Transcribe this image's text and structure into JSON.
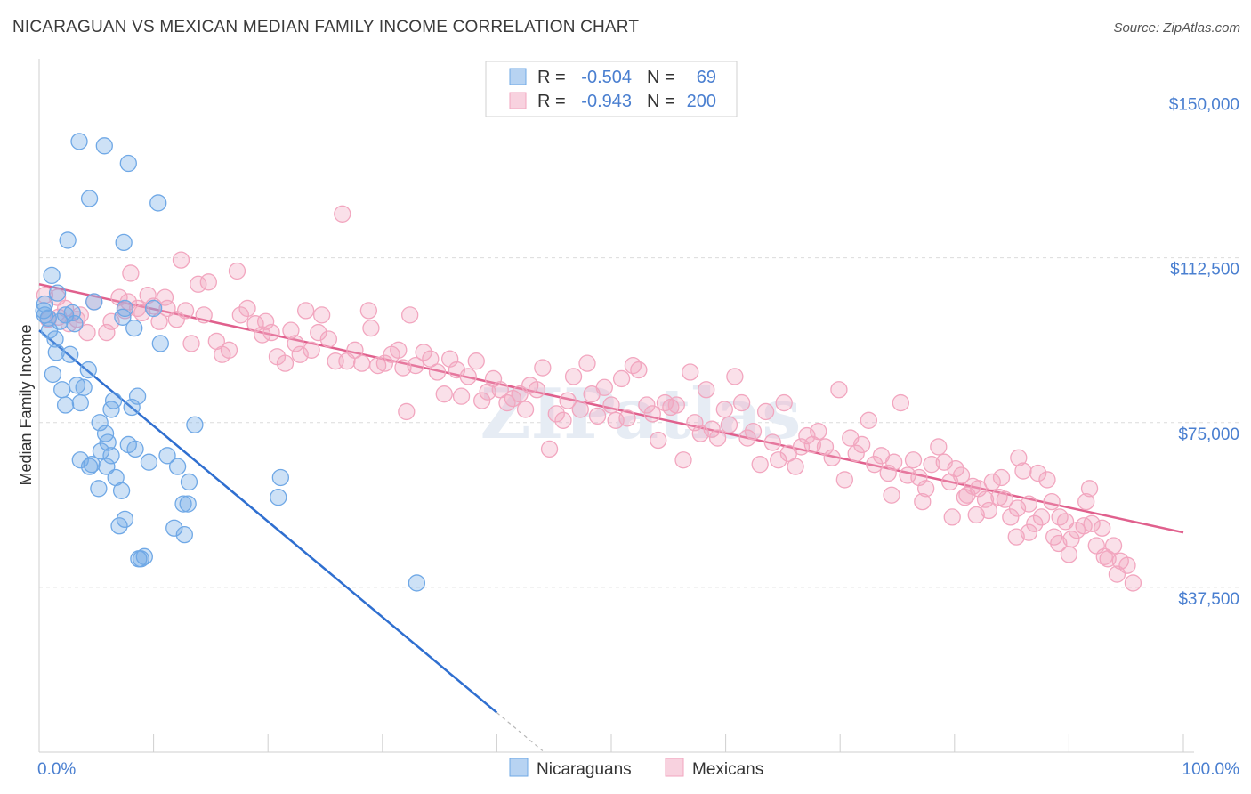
{
  "title": "NICARAGUAN VS MEXICAN MEDIAN FAMILY INCOME CORRELATION CHART",
  "source": "Source: ZipAtlas.com",
  "watermark": "ZIPatlas",
  "colors": {
    "blue": "#6fa8e6",
    "blue_line": "#2f6fd0",
    "pink": "#f2a6bf",
    "pink_line": "#e0608d",
    "tick_label": "#4a7fd0",
    "grid": "#dcdcdc"
  },
  "legend": {
    "rows": [
      {
        "r_label": "R =",
        "r_value": "-0.504",
        "n_label": "N =",
        "n_value": "69"
      },
      {
        "r_label": "R =",
        "r_value": "-0.943",
        "n_label": "N =",
        "n_value": "200"
      }
    ]
  },
  "bottom_legend": [
    "Nicaraguans",
    "Mexicans"
  ],
  "chart_data": {
    "type": "scatter",
    "title": "NICARAGUAN VS MEXICAN MEDIAN FAMILY INCOME CORRELATION CHART",
    "xlabel": "",
    "ylabel": "Median Family Income",
    "xlim": [
      0,
      100
    ],
    "ylim": [
      0,
      157000
    ],
    "x_tick_labels": [
      "0.0%",
      "100.0%"
    ],
    "y_ticks": [
      37500,
      75000,
      112500,
      150000
    ],
    "y_tick_labels": [
      "$37,500",
      "$75,000",
      "$112,500",
      "$150,000"
    ],
    "grid": true,
    "legend_position": "top-center",
    "series": [
      {
        "name": "Nicaraguans",
        "R": -0.504,
        "N": 69,
        "trend": {
          "x": [
            0,
            40
          ],
          "y": [
            96000,
            9000
          ]
        },
        "points": [
          [
            3.5,
            139000
          ],
          [
            5.7,
            138000
          ],
          [
            7.8,
            134000
          ],
          [
            10.4,
            125000
          ],
          [
            4.4,
            126000
          ],
          [
            2.5,
            116500
          ],
          [
            7.4,
            116000
          ],
          [
            1.1,
            108500
          ],
          [
            1.6,
            104500
          ],
          [
            0.5,
            102000
          ],
          [
            0.4,
            100500
          ],
          [
            0.5,
            99500
          ],
          [
            0.8,
            98800
          ],
          [
            2.3,
            99500
          ],
          [
            4.8,
            102500
          ],
          [
            2.9,
            100000
          ],
          [
            7.5,
            101000
          ],
          [
            7.3,
            99000
          ],
          [
            1.8,
            98000
          ],
          [
            0.9,
            96000
          ],
          [
            8.3,
            96500
          ],
          [
            1.4,
            94000
          ],
          [
            10.6,
            93000
          ],
          [
            1.5,
            91000
          ],
          [
            2.7,
            90500
          ],
          [
            1.2,
            86000
          ],
          [
            4.3,
            87000
          ],
          [
            6.5,
            80000
          ],
          [
            6.3,
            78000
          ],
          [
            8.6,
            81000
          ],
          [
            3.3,
            83500
          ],
          [
            2.0,
            82500
          ],
          [
            3.9,
            83000
          ],
          [
            8.1,
            78500
          ],
          [
            2.3,
            79000
          ],
          [
            3.6,
            79500
          ],
          [
            5.3,
            75000
          ],
          [
            5.8,
            72500
          ],
          [
            13.6,
            74500
          ],
          [
            7.8,
            70000
          ],
          [
            8.4,
            69000
          ],
          [
            5.4,
            68500
          ],
          [
            3.6,
            66500
          ],
          [
            4.4,
            65000
          ],
          [
            4.6,
            65500
          ],
          [
            6.3,
            67500
          ],
          [
            9.6,
            66000
          ],
          [
            11.2,
            67500
          ],
          [
            12.1,
            65000
          ],
          [
            5.9,
            65000
          ],
          [
            6.7,
            62500
          ],
          [
            5.2,
            60000
          ],
          [
            7.2,
            59500
          ],
          [
            13.1,
            61500
          ],
          [
            21.1,
            62500
          ],
          [
            20.9,
            58000
          ],
          [
            12.6,
            56500
          ],
          [
            13.0,
            56500
          ],
          [
            7.5,
            53000
          ],
          [
            7.0,
            51500
          ],
          [
            11.8,
            51000
          ],
          [
            12.7,
            49500
          ],
          [
            9.2,
            44500
          ],
          [
            8.7,
            44000
          ],
          [
            8.9,
            44000
          ],
          [
            33.0,
            38500
          ],
          [
            10.0,
            101000
          ],
          [
            3.1,
            97500
          ],
          [
            6.0,
            70500
          ]
        ]
      },
      {
        "name": "Mexicans",
        "R": -0.943,
        "N": 200,
        "trend": {
          "x": [
            0,
            100
          ],
          "y": [
            106500,
            50000
          ]
        },
        "points": [
          [
            0.5,
            104000
          ],
          [
            1.6,
            103500
          ],
          [
            2.3,
            101000
          ],
          [
            0.8,
            98500
          ],
          [
            1.7,
            99000
          ],
          [
            2.6,
            97500
          ],
          [
            3.3,
            98500
          ],
          [
            3.6,
            99500
          ],
          [
            4.2,
            95500
          ],
          [
            4.8,
            102500
          ],
          [
            5.9,
            95500
          ],
          [
            6.3,
            98000
          ],
          [
            7.0,
            103500
          ],
          [
            7.5,
            100500
          ],
          [
            7.8,
            102500
          ],
          [
            8.0,
            109000
          ],
          [
            8.6,
            101000
          ],
          [
            9.0,
            100000
          ],
          [
            9.5,
            104000
          ],
          [
            10.0,
            101500
          ],
          [
            10.5,
            98000
          ],
          [
            11.0,
            103500
          ],
          [
            11.2,
            101000
          ],
          [
            12.0,
            98500
          ],
          [
            12.4,
            112000
          ],
          [
            12.8,
            100500
          ],
          [
            13.3,
            93000
          ],
          [
            13.9,
            106500
          ],
          [
            14.4,
            99500
          ],
          [
            14.8,
            107000
          ],
          [
            15.5,
            93500
          ],
          [
            16.0,
            90500
          ],
          [
            16.6,
            91500
          ],
          [
            17.3,
            109500
          ],
          [
            17.6,
            99500
          ],
          [
            18.2,
            101000
          ],
          [
            18.9,
            97500
          ],
          [
            19.5,
            95000
          ],
          [
            19.8,
            98000
          ],
          [
            20.3,
            95500
          ],
          [
            20.8,
            90000
          ],
          [
            21.5,
            88500
          ],
          [
            22.0,
            96000
          ],
          [
            22.4,
            93000
          ],
          [
            22.8,
            90500
          ],
          [
            23.3,
            100500
          ],
          [
            23.8,
            91500
          ],
          [
            24.4,
            95500
          ],
          [
            24.7,
            99500
          ],
          [
            25.3,
            94000
          ],
          [
            25.9,
            89000
          ],
          [
            26.5,
            122500
          ],
          [
            26.9,
            89000
          ],
          [
            27.6,
            91500
          ],
          [
            28.2,
            88500
          ],
          [
            28.8,
            100500
          ],
          [
            29.0,
            96500
          ],
          [
            29.6,
            88000
          ],
          [
            30.2,
            88500
          ],
          [
            30.8,
            90500
          ],
          [
            31.4,
            91500
          ],
          [
            31.8,
            87500
          ],
          [
            32.1,
            77500
          ],
          [
            32.4,
            99500
          ],
          [
            32.9,
            88000
          ],
          [
            33.6,
            91000
          ],
          [
            34.2,
            89500
          ],
          [
            34.8,
            86500
          ],
          [
            35.4,
            81500
          ],
          [
            35.9,
            89500
          ],
          [
            36.5,
            87000
          ],
          [
            36.9,
            81000
          ],
          [
            37.5,
            85500
          ],
          [
            38.2,
            89000
          ],
          [
            38.7,
            80000
          ],
          [
            39.2,
            82000
          ],
          [
            39.7,
            85000
          ],
          [
            40.3,
            82500
          ],
          [
            40.9,
            79500
          ],
          [
            41.4,
            80500
          ],
          [
            42.0,
            81500
          ],
          [
            42.5,
            78000
          ],
          [
            42.9,
            83500
          ],
          [
            43.5,
            82500
          ],
          [
            44.0,
            87500
          ],
          [
            44.6,
            69000
          ],
          [
            45.2,
            77000
          ],
          [
            45.8,
            75500
          ],
          [
            46.2,
            80000
          ],
          [
            46.7,
            85500
          ],
          [
            47.3,
            78000
          ],
          [
            47.9,
            88500
          ],
          [
            48.3,
            81500
          ],
          [
            48.8,
            76500
          ],
          [
            49.4,
            83000
          ],
          [
            50.0,
            79000
          ],
          [
            50.4,
            75500
          ],
          [
            50.9,
            85000
          ],
          [
            51.4,
            76000
          ],
          [
            51.9,
            88000
          ],
          [
            52.4,
            87000
          ],
          [
            53.1,
            79000
          ],
          [
            53.6,
            77000
          ],
          [
            54.1,
            71000
          ],
          [
            54.7,
            79500
          ],
          [
            55.2,
            78500
          ],
          [
            55.7,
            79000
          ],
          [
            56.3,
            66500
          ],
          [
            56.9,
            86500
          ],
          [
            57.3,
            75000
          ],
          [
            57.8,
            72500
          ],
          [
            58.3,
            82500
          ],
          [
            58.8,
            73500
          ],
          [
            59.3,
            71500
          ],
          [
            59.9,
            78000
          ],
          [
            60.3,
            74500
          ],
          [
            60.8,
            85500
          ],
          [
            61.4,
            79500
          ],
          [
            61.9,
            71500
          ],
          [
            62.4,
            73000
          ],
          [
            63.0,
            65500
          ],
          [
            63.5,
            77500
          ],
          [
            64.1,
            70500
          ],
          [
            64.6,
            66500
          ],
          [
            65.1,
            79500
          ],
          [
            65.5,
            68000
          ],
          [
            66.1,
            65000
          ],
          [
            66.6,
            69500
          ],
          [
            67.1,
            72000
          ],
          [
            67.6,
            70000
          ],
          [
            68.1,
            73000
          ],
          [
            68.7,
            69500
          ],
          [
            69.3,
            67000
          ],
          [
            69.9,
            82500
          ],
          [
            70.4,
            62000
          ],
          [
            70.9,
            71500
          ],
          [
            71.4,
            68000
          ],
          [
            71.9,
            70000
          ],
          [
            72.5,
            75500
          ],
          [
            73.0,
            65500
          ],
          [
            73.6,
            67500
          ],
          [
            74.2,
            63500
          ],
          [
            74.7,
            66000
          ],
          [
            75.3,
            79500
          ],
          [
            75.9,
            63000
          ],
          [
            76.4,
            66500
          ],
          [
            76.9,
            62500
          ],
          [
            77.5,
            60000
          ],
          [
            78.0,
            65500
          ],
          [
            78.6,
            69500
          ],
          [
            79.1,
            66000
          ],
          [
            79.6,
            61500
          ],
          [
            80.1,
            64500
          ],
          [
            80.6,
            63000
          ],
          [
            81.1,
            58500
          ],
          [
            81.6,
            60500
          ],
          [
            82.1,
            60000
          ],
          [
            82.7,
            57500
          ],
          [
            83.3,
            61500
          ],
          [
            83.9,
            58000
          ],
          [
            84.4,
            57500
          ],
          [
            84.9,
            53500
          ],
          [
            85.5,
            55500
          ],
          [
            86.0,
            64000
          ],
          [
            86.5,
            56500
          ],
          [
            87.0,
            52000
          ],
          [
            87.6,
            53500
          ],
          [
            88.1,
            62000
          ],
          [
            88.7,
            49000
          ],
          [
            89.2,
            53500
          ],
          [
            89.7,
            52500
          ],
          [
            90.2,
            48500
          ],
          [
            90.7,
            50500
          ],
          [
            91.3,
            51500
          ],
          [
            91.8,
            60000
          ],
          [
            92.4,
            47000
          ],
          [
            92.9,
            51000
          ],
          [
            93.4,
            44000
          ],
          [
            93.9,
            47000
          ],
          [
            94.5,
            43500
          ],
          [
            95.1,
            42500
          ],
          [
            95.6,
            38500
          ],
          [
            80.9,
            58000
          ],
          [
            86.5,
            50000
          ],
          [
            87.3,
            63500
          ],
          [
            85.6,
            67000
          ],
          [
            77.2,
            57000
          ],
          [
            74.5,
            58500
          ],
          [
            79.8,
            53500
          ],
          [
            83.0,
            55000
          ],
          [
            88.5,
            57000
          ],
          [
            90.0,
            45000
          ],
          [
            91.5,
            57000
          ],
          [
            94.2,
            40500
          ],
          [
            92.0,
            52000
          ],
          [
            93.1,
            44500
          ],
          [
            89.1,
            47500
          ],
          [
            84.1,
            62500
          ],
          [
            81.9,
            54000
          ],
          [
            85.4,
            49000
          ]
        ]
      }
    ]
  }
}
